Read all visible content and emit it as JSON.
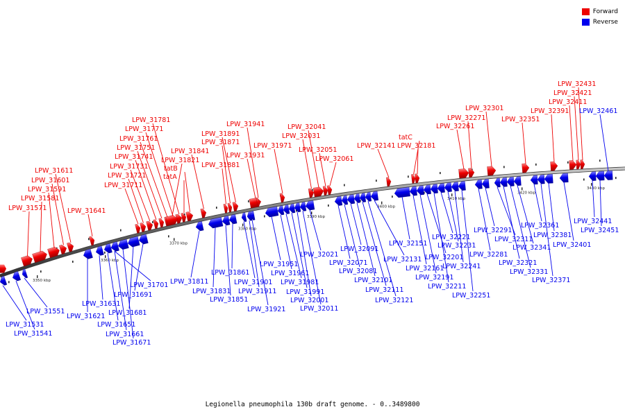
{
  "legend": [
    {
      "label": "Forward",
      "color": "#ee0000"
    },
    {
      "label": "Reverse",
      "color": "#0000ee"
    }
  ],
  "caption": "Legionella pneumophila 130b draft genome. - 0..3489800",
  "ruler_labels": [
    "3350 kbp",
    "3360 kbp",
    "3370 kbp",
    "3380 kbp",
    "3390 kbp",
    "3400 kbp",
    "3410 kbp",
    "3420 kbp",
    "3430 kbp"
  ],
  "forward_genes": [
    {
      "label": "LPW_31571"
    },
    {
      "label": "LPW_31581"
    },
    {
      "label": "LPW_31591"
    },
    {
      "label": "LPW_31601"
    },
    {
      "label": "LPW_31611"
    },
    {
      "label": "LPW_31641"
    },
    {
      "label": "LPW_31711"
    },
    {
      "label": "LPW_31721"
    },
    {
      "label": "LPW_31731"
    },
    {
      "label": "LPW_31741"
    },
    {
      "label": "LPW_31751"
    },
    {
      "label": "LPW_31761"
    },
    {
      "label": "LPW_31771"
    },
    {
      "label": "LPW_31781"
    },
    {
      "label": "tatA"
    },
    {
      "label": "tatB"
    },
    {
      "label": "LPW_31821"
    },
    {
      "label": "LPW_31841"
    },
    {
      "label": "LPW_31881"
    },
    {
      "label": "LPW_31871"
    },
    {
      "label": "LPW_31891"
    },
    {
      "label": "LPW_31931"
    },
    {
      "label": "LPW_31941"
    },
    {
      "label": "LPW_31971"
    },
    {
      "label": "LPW_32031"
    },
    {
      "label": "LPW_32041"
    },
    {
      "label": "LPW_32051"
    },
    {
      "label": "LPW_32061"
    },
    {
      "label": "LPW_32141"
    },
    {
      "label": "tatC"
    },
    {
      "label": "LPW_32181"
    },
    {
      "label": "LPW_32261"
    },
    {
      "label": "LPW_32271"
    },
    {
      "label": "LPW_32301"
    },
    {
      "label": "LPW_32351"
    },
    {
      "label": "LPW_32391"
    },
    {
      "label": "LPW_32411"
    },
    {
      "label": "LPW_32421"
    },
    {
      "label": "LPW_32431"
    }
  ],
  "reverse_genes": [
    {
      "label": "LPW_31531"
    },
    {
      "label": "LPW_31541"
    },
    {
      "label": "LPW_31551"
    },
    {
      "label": "LPW_31621"
    },
    {
      "label": "LPW_31631"
    },
    {
      "label": "LPW_31651"
    },
    {
      "label": "LPW_31661"
    },
    {
      "label": "LPW_31671"
    },
    {
      "label": "LPW_31681"
    },
    {
      "label": "LPW_31691"
    },
    {
      "label": "LPW_31701"
    },
    {
      "label": "LPW_31811"
    },
    {
      "label": "LPW_31831"
    },
    {
      "label": "LPW_31851"
    },
    {
      "label": "LPW_31861"
    },
    {
      "label": "LPW_31901"
    },
    {
      "label": "LPW_31911"
    },
    {
      "label": "LPW_31921"
    },
    {
      "label": "LPW_31951"
    },
    {
      "label": "LPW_31961"
    },
    {
      "label": "LPW_31981"
    },
    {
      "label": "LPW_31991"
    },
    {
      "label": "LPW_32001"
    },
    {
      "label": "LPW_32011"
    },
    {
      "label": "LPW_32021"
    },
    {
      "label": "LPW_32071"
    },
    {
      "label": "LPW_32081"
    },
    {
      "label": "LPW_32091"
    },
    {
      "label": "LPW_32101"
    },
    {
      "label": "LPW_32111"
    },
    {
      "label": "LPW_32121"
    },
    {
      "label": "LPW_32131"
    },
    {
      "label": "LPW_32151"
    },
    {
      "label": "LPW_32161"
    },
    {
      "label": "LPW_32191"
    },
    {
      "label": "LPW_32201"
    },
    {
      "label": "LPW_32211"
    },
    {
      "label": "LPW_32221"
    },
    {
      "label": "LPW_32231"
    },
    {
      "label": "LPW_32241"
    },
    {
      "label": "LPW_32251"
    },
    {
      "label": "LPW_32281"
    },
    {
      "label": "LPW_32291"
    },
    {
      "label": "LPW_32311"
    },
    {
      "label": "LPW_32321"
    },
    {
      "label": "LPW_32331"
    },
    {
      "label": "LPW_32341"
    },
    {
      "label": "LPW_32361"
    },
    {
      "label": "LPW_32371"
    },
    {
      "label": "LPW_32381"
    },
    {
      "label": "LPW_32401"
    },
    {
      "label": "LPW_32441"
    },
    {
      "label": "LPW_32451"
    },
    {
      "label": "LPW_32461"
    }
  ]
}
